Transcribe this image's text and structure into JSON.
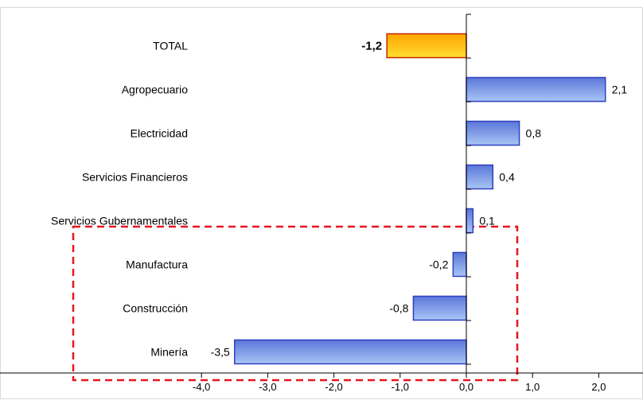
{
  "chart_data": {
    "type": "bar",
    "orientation": "horizontal",
    "categories": [
      "TOTAL",
      "Agropecuario",
      "Electricidad",
      "Servicios Financieros",
      "Servicios Gubernamentales",
      "Manufactura",
      "Construcción",
      "Minería"
    ],
    "values": [
      -1.2,
      2.1,
      0.8,
      0.4,
      0.1,
      -0.2,
      -0.8,
      -3.5
    ],
    "value_labels": [
      "-1,2",
      "2,1",
      "0,8",
      "0,4",
      "0,1",
      "-0,2",
      "-0,8",
      "-3,5"
    ],
    "highlight_index": 0,
    "xlim": [
      -4.0,
      2.5
    ],
    "xticks": [
      -4.0,
      -3.0,
      -2.0,
      -1.0,
      0.0,
      1.0,
      2.0
    ],
    "xtick_labels": [
      "-4,0",
      "-3,0",
      "-2,0",
      "-1,0",
      "0,0",
      "1,0",
      "2,0"
    ],
    "grid": false,
    "legend": "none",
    "annotation": {
      "type": "dashed-box",
      "color": "#e8141c",
      "categories": [
        "Manufactura",
        "Construcción",
        "Minería"
      ]
    },
    "colors": {
      "bar": "#5b76d9",
      "bar_light": "#a9c6f5",
      "bar_border": "#2f3fbf",
      "highlight": "#ffa600",
      "highlight_light": "#ffdd33",
      "highlight_border": "#c02a00",
      "axis": "#000000"
    }
  }
}
